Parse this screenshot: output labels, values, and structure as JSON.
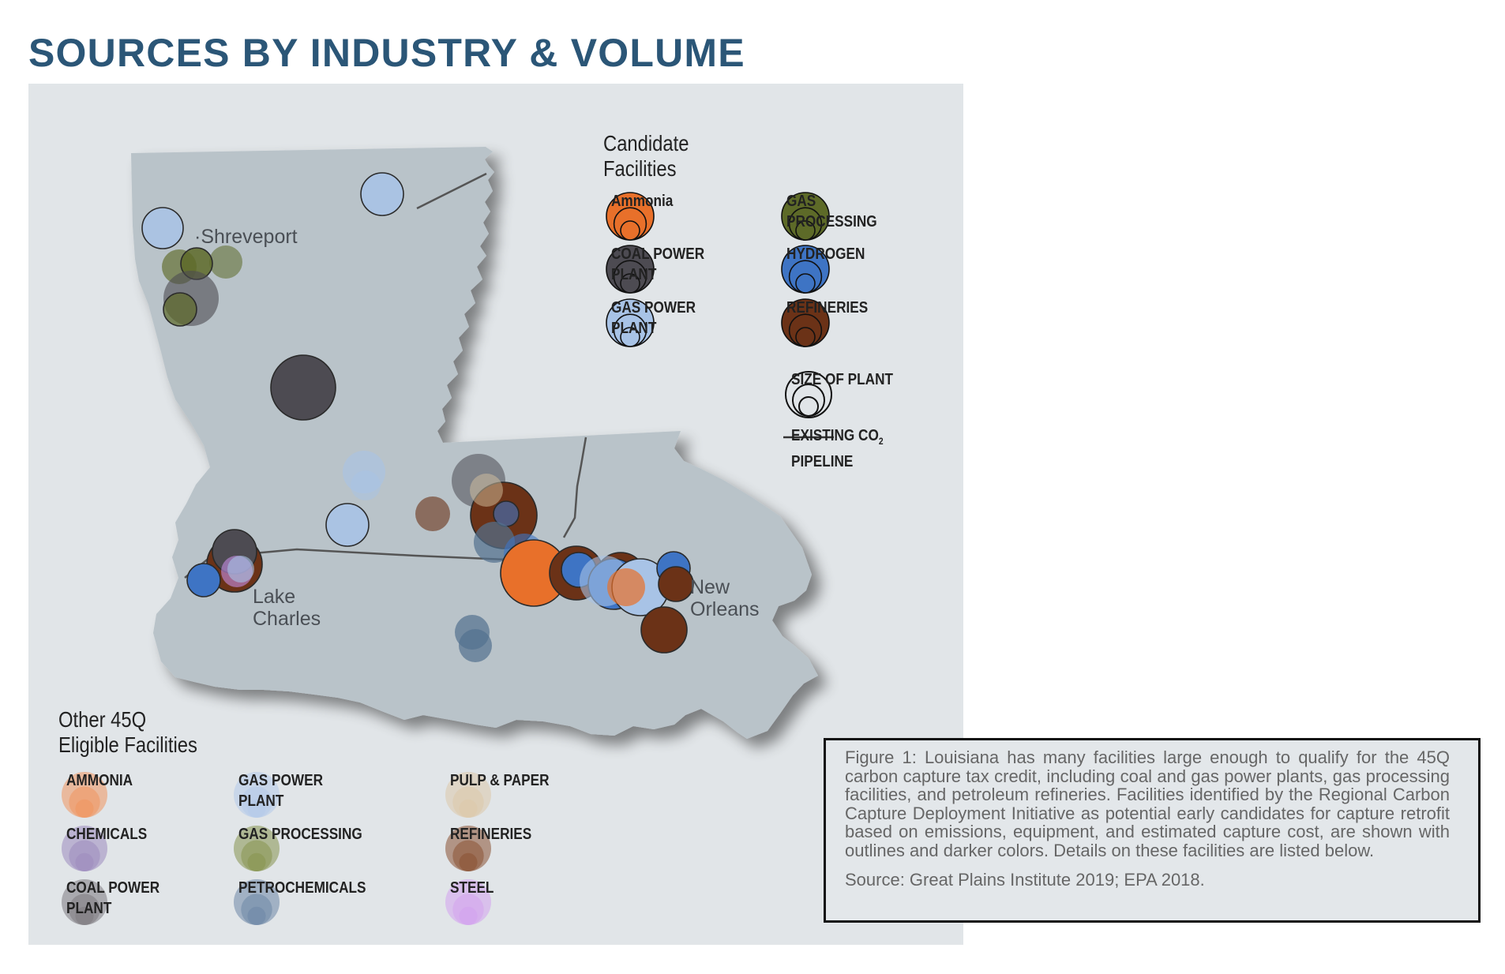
{
  "title": "SOURCES BY INDUSTRY & VOLUME",
  "colors": {
    "title": "#2b5677",
    "state_fill": "#b9c3c9",
    "background": "#e1e5e8",
    "ammonia": "#e8702a",
    "coal_power": "#4d4b52",
    "gas_power": "#a8c3e6",
    "gas_processing": "#5d6a28",
    "hydrogen": "#3e74c4",
    "refineries": "#6b3217",
    "chemicals": "#8f7bb3",
    "petrochemicals": "#53708f",
    "pulp_paper": "#d6c1a0",
    "steel": "#c68de6"
  },
  "map_labels": {
    "shreveport": "Shreveport",
    "lake_charles": "Lake\nCharles",
    "new_orleans": "New\nOrleans"
  },
  "candidate_legend": {
    "title": "Candidate\nFacilities",
    "items": [
      {
        "label": "Ammonia",
        "color": "#e8702a",
        "icon": "ammonia-circles-icon"
      },
      {
        "label": "GAS\nPROCESSING",
        "color": "#5d6a28",
        "icon": "gas-processing-circles-icon"
      },
      {
        "label": "COAL POWER\nPLANT",
        "color": "#4d4b52",
        "icon": "coal-power-circles-icon"
      },
      {
        "label": "HYDROGEN",
        "color": "#3e74c4",
        "icon": "hydrogen-circles-icon"
      },
      {
        "label": "GAS POWER\nPLANT",
        "color": "#a8c3e6",
        "icon": "gas-power-circles-icon"
      },
      {
        "label": "REFINERIES",
        "color": "#6b3217",
        "icon": "refineries-circles-icon"
      }
    ],
    "size_label": "SIZE OF PLANT",
    "pipeline_label": "EXISTING CO",
    "pipeline_sub": "2",
    "pipeline_label2": "PIPELINE"
  },
  "other_legend": {
    "title": "Other 45Q\nEligible Facilities",
    "items": [
      {
        "label": "AMMONIA",
        "color": "#f0965f",
        "icon": "ammonia-circles-icon"
      },
      {
        "label": "GAS POWER\nPLANT",
        "color": "#b4cbea",
        "icon": "gas-power-circles-icon"
      },
      {
        "label": "PULP & PAPER",
        "color": "#dcc8aa",
        "icon": "pulp-paper-circles-icon"
      },
      {
        "label": "CHEMICALS",
        "color": "#9c8bbd",
        "icon": "chemicals-circles-icon"
      },
      {
        "label": "GAS PROCESSING",
        "color": "#87944e",
        "icon": "gas-processing-circles-icon"
      },
      {
        "label": "REFINERIES",
        "color": "#8b5233",
        "icon": "refineries-circles-icon"
      },
      {
        "label": "COAL POWER\nPLANT",
        "color": "#7d7a80",
        "icon": "coal-power-circles-icon"
      },
      {
        "label": "PETROCHEMICALS",
        "color": "#6e87a6",
        "icon": "petrochemicals-circles-icon"
      },
      {
        "label": "STEEL",
        "color": "#d3a3ef",
        "icon": "steel-circles-icon"
      }
    ]
  },
  "caption": {
    "text": "Figure 1: Louisiana has many facilities large enough to qualify for the 45Q carbon capture tax credit, including coal and gas power plants, gas processing facilities, and petroleum refineries. Facilities identified by the Regional Carbon Capture Deployment Initiative as potential early candidates for capture retrofit based on emissions, equipment, and estimated capture cost, are shown with outlines and darker colors. Details on these facilities are listed below.",
    "source": "Source: Great Plains Institute 2019; EPA 2018."
  }
}
